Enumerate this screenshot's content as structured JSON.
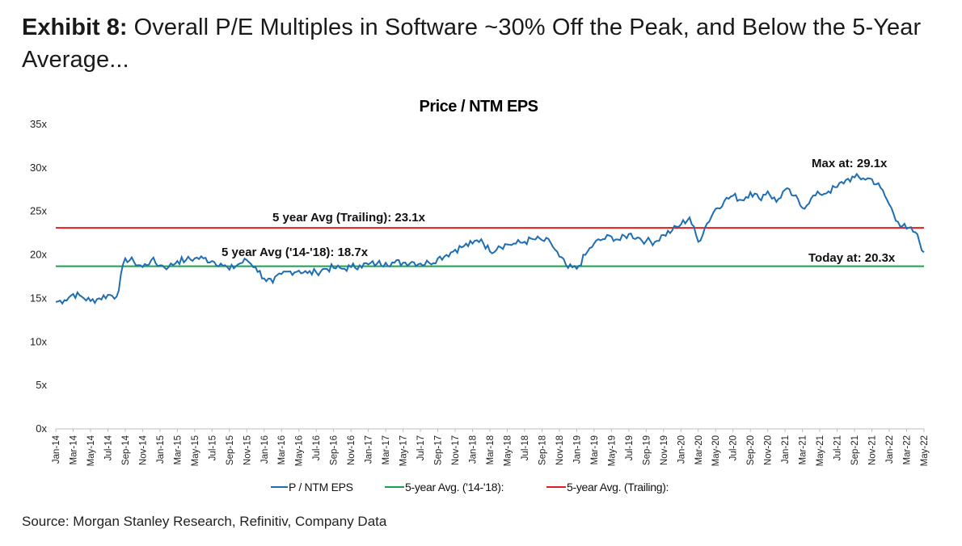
{
  "exhibit": {
    "label": "Exhibit 8:",
    "title": "Overall P/E Multiples in Software ~30% Off the Peak, and Below the 5-Year Average..."
  },
  "source": "Source: Morgan Stanley Research, Refinitiv, Company Data",
  "chart_data": {
    "type": "line",
    "title": "Price / NTM EPS",
    "xlabel": "",
    "ylabel": "",
    "ylim": [
      0,
      35
    ],
    "y_ticks": [
      "0x",
      "5x",
      "10x",
      "15x",
      "20x",
      "25x",
      "30x",
      "35x"
    ],
    "x_tick_labels": [
      "Jan-14",
      "Mar-14",
      "May-14",
      "Jul-14",
      "Sep-14",
      "Nov-14",
      "Jan-15",
      "Mar-15",
      "May-15",
      "Jul-15",
      "Sep-15",
      "Nov-15",
      "Jan-16",
      "Mar-16",
      "May-16",
      "Jul-16",
      "Sep-16",
      "Nov-16",
      "Jan-17",
      "Mar-17",
      "May-17",
      "Jul-17",
      "Sep-17",
      "Nov-17",
      "Jan-18",
      "Mar-18",
      "May-18",
      "Jul-18",
      "Sep-18",
      "Nov-18",
      "Jan-19",
      "Mar-19",
      "May-19",
      "Jul-19",
      "Sep-19",
      "Nov-19",
      "Jan-20",
      "Mar-20",
      "May-20",
      "Jul-20",
      "Sep-20",
      "Nov-20",
      "Jan-21",
      "Mar-21",
      "May-21",
      "Jul-21",
      "Sep-21",
      "Nov-21",
      "Jan-22",
      "Mar-22",
      "May-22"
    ],
    "grid": false,
    "legend_position": "bottom",
    "series": [
      {
        "name": "P / NTM EPS",
        "color": "#1f6eb3",
        "x": [
          "Jan-14",
          "Feb-14",
          "Mar-14",
          "Apr-14",
          "May-14",
          "Jun-14",
          "Jul-14",
          "Aug-14",
          "Sep-14",
          "Oct-14",
          "Nov-14",
          "Dec-14",
          "Jan-15",
          "Feb-15",
          "Mar-15",
          "Apr-15",
          "May-15",
          "Jun-15",
          "Jul-15",
          "Aug-15",
          "Sep-15",
          "Oct-15",
          "Nov-15",
          "Dec-15",
          "Jan-16",
          "Feb-16",
          "Mar-16",
          "Apr-16",
          "May-16",
          "Jun-16",
          "Jul-16",
          "Aug-16",
          "Sep-16",
          "Oct-16",
          "Nov-16",
          "Dec-16",
          "Jan-17",
          "Feb-17",
          "Mar-17",
          "Apr-17",
          "May-17",
          "Jun-17",
          "Jul-17",
          "Aug-17",
          "Sep-17",
          "Oct-17",
          "Nov-17",
          "Dec-17",
          "Jan-18",
          "Feb-18",
          "Mar-18",
          "Apr-18",
          "May-18",
          "Jun-18",
          "Jul-18",
          "Aug-18",
          "Sep-18",
          "Oct-18",
          "Nov-18",
          "Dec-18",
          "Jan-19",
          "Feb-19",
          "Mar-19",
          "Apr-19",
          "May-19",
          "Jun-19",
          "Jul-19",
          "Aug-19",
          "Sep-19",
          "Oct-19",
          "Nov-19",
          "Dec-19",
          "Jan-20",
          "Feb-20",
          "Mar-20",
          "Apr-20",
          "May-20",
          "Jun-20",
          "Jul-20",
          "Aug-20",
          "Sep-20",
          "Oct-20",
          "Nov-20",
          "Dec-20",
          "Jan-21",
          "Feb-21",
          "Mar-21",
          "Apr-21",
          "May-21",
          "Jun-21",
          "Jul-21",
          "Aug-21",
          "Sep-21",
          "Oct-21",
          "Nov-21",
          "Dec-21",
          "Jan-22",
          "Feb-22",
          "Mar-22",
          "Apr-22",
          "May-22"
        ],
        "values": [
          14.6,
          14.8,
          15.5,
          15.2,
          14.7,
          15.0,
          15.4,
          15.2,
          19.6,
          19.2,
          18.6,
          19.4,
          18.8,
          18.6,
          19.3,
          19.4,
          19.6,
          19.6,
          19.3,
          19.0,
          18.3,
          18.9,
          19.4,
          18.6,
          17.3,
          16.8,
          17.8,
          18.1,
          18.2,
          17.9,
          18.0,
          18.4,
          18.5,
          18.4,
          18.6,
          18.8,
          18.9,
          19.0,
          19.1,
          19.1,
          19.1,
          19.2,
          19.0,
          19.1,
          19.6,
          20.0,
          20.6,
          21.0,
          21.3,
          21.8,
          20.4,
          21.0,
          21.2,
          21.3,
          21.5,
          21.8,
          21.7,
          21.4,
          19.8,
          18.5,
          18.4,
          20.0,
          21.3,
          21.8,
          22.1,
          21.7,
          22.4,
          22.0,
          21.6,
          21.5,
          22.3,
          22.8,
          23.5,
          24.3,
          21.5,
          23.6,
          25.3,
          26.2,
          26.8,
          26.3,
          27.2,
          26.5,
          27.3,
          26.1,
          27.5,
          26.8,
          25.4,
          26.5,
          27.0,
          27.3,
          27.8,
          28.6,
          28.9,
          28.8,
          28.7,
          27.7,
          25.8,
          23.8,
          23.0,
          22.6,
          20.3
        ]
      },
      {
        "name": "5-year Avg. ('14-'18):",
        "color": "#16a34a",
        "value": 18.7
      },
      {
        "name": "5-year Avg. (Trailing):",
        "color": "#e01e1e",
        "value": 23.1
      }
    ],
    "annotations": {
      "trailing_avg": "5 year Avg (Trailing): 23.1x",
      "avg_14_18": "5 year Avg ('14-'18): 18.7x",
      "max": "Max at: 29.1x",
      "today": "Today at: 20.3x"
    }
  }
}
